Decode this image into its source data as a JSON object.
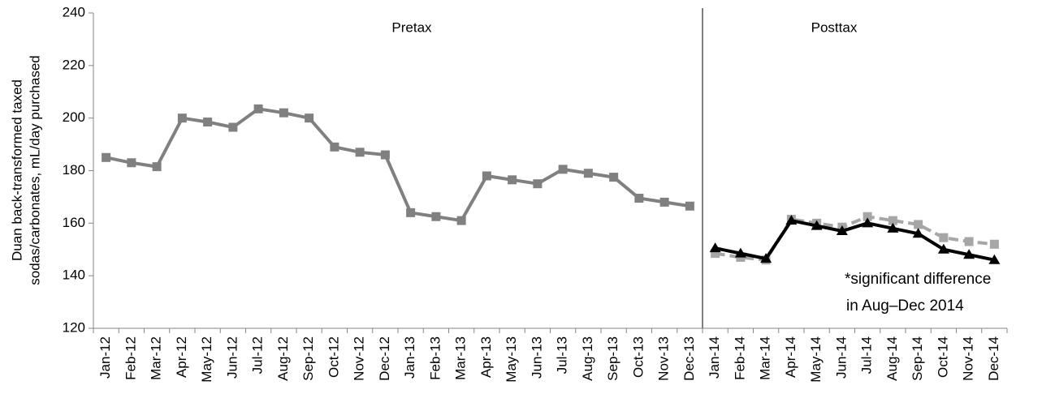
{
  "chart_data": {
    "type": "line",
    "y_label": [
      "Duan back-transformed taxed",
      "sodas/carbonates, mL/day purchased"
    ],
    "annotations": [
      "Pretax",
      "Posttax",
      "*significant difference",
      "in Aug–Dec 2014"
    ],
    "categories": [
      "Jan-12",
      "Feb-12",
      "Mar-12",
      "Apr-12",
      "May-12",
      "Jun-12",
      "Jul-12",
      "Aug-12",
      "Sep-12",
      "Oct-12",
      "Nov-12",
      "Dec-12",
      "Jan-13",
      "Feb-13",
      "Mar-13",
      "Apr-13",
      "May-13",
      "Jun-13",
      "Jul-13",
      "Aug-13",
      "Sep-13",
      "Oct-13",
      "Nov-13",
      "Dec-13",
      "Jan-14",
      "Feb-14",
      "Mar-14",
      "Apr-14",
      "May-14",
      "Jun-14",
      "Jul-14",
      "Aug-14",
      "Sep-14",
      "Oct-14",
      "Nov-14",
      "Dec-14"
    ],
    "series": [
      {
        "color": "#808080",
        "marker": "square",
        "dashed": false,
        "values": [
          185,
          183,
          181.5,
          200,
          198.5,
          196.5,
          203.5,
          202,
          200,
          189,
          187,
          186,
          164,
          162.5,
          161,
          178,
          176.5,
          175,
          180.5,
          179,
          177.5,
          169.5,
          168,
          166.5,
          null,
          null,
          null,
          null,
          null,
          null,
          null,
          null,
          null,
          null,
          null,
          null
        ]
      },
      {
        "color": "#a6a6a6",
        "marker": "square",
        "dashed": true,
        "values": [
          null,
          null,
          null,
          null,
          null,
          null,
          null,
          null,
          null,
          null,
          null,
          null,
          null,
          null,
          null,
          null,
          null,
          null,
          null,
          null,
          null,
          null,
          null,
          null,
          148.5,
          147,
          146,
          161.5,
          160,
          158.5,
          162.5,
          161,
          159.5,
          154.5,
          153,
          152
        ]
      },
      {
        "color": "#000000",
        "marker": "triangle",
        "dashed": false,
        "values": [
          null,
          null,
          null,
          null,
          null,
          null,
          null,
          null,
          null,
          null,
          null,
          null,
          null,
          null,
          null,
          null,
          null,
          null,
          null,
          null,
          null,
          null,
          null,
          null,
          150.5,
          148.5,
          146.5,
          161,
          159,
          157,
          160,
          158,
          156,
          150,
          148,
          146
        ]
      }
    ],
    "ylim": [
      120,
      240
    ],
    "yticks": [
      120,
      140,
      160,
      180,
      200,
      220,
      240
    ],
    "grid": false
  }
}
